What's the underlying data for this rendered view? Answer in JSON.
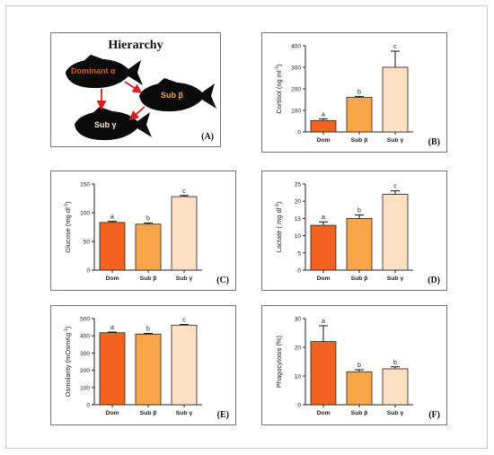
{
  "panel_a": {
    "title": "Hierarchy",
    "label": "(A)",
    "fish": [
      {
        "text": "Dominant α",
        "color": "#e8531a"
      },
      {
        "text": "Sub β",
        "color": "#f6a046"
      },
      {
        "text": "Sub γ",
        "color": "#fbe7c8"
      }
    ],
    "arrow_color": "#d42020"
  },
  "chart_data": [
    {
      "id": "B",
      "label": "(B)",
      "type": "bar",
      "categories": [
        "Dom",
        "Sub β",
        "Sub γ"
      ],
      "values": [
        53,
        160,
        300
      ],
      "errors": [
        8,
        5,
        75
      ],
      "letters": [
        "a",
        "b",
        "c"
      ],
      "ylabel": "Cortisol (ng ml",
      "ylabel_sup": "-1",
      "ylim": [
        0,
        400
      ],
      "yticks": [
        0,
        100,
        200,
        300,
        400
      ],
      "colors": [
        "#f26322",
        "#f9a54a",
        "#fde0c2"
      ]
    },
    {
      "id": "C",
      "label": "(C)",
      "type": "bar",
      "categories": [
        "Dom",
        "Sub β",
        "Sub γ"
      ],
      "values": [
        83,
        80,
        128
      ],
      "errors": [
        2,
        2,
        2
      ],
      "letters": [
        "a",
        "b",
        "c"
      ],
      "ylabel": "Glucose (mg dl",
      "ylabel_sup": "-1",
      "ylim": [
        0,
        150
      ],
      "yticks": [
        0,
        50,
        100,
        150
      ],
      "colors": [
        "#f26322",
        "#f9a54a",
        "#fde0c2"
      ]
    },
    {
      "id": "D",
      "label": "(D)",
      "type": "bar",
      "categories": [
        "Dom",
        "Sub β",
        "Sub γ"
      ],
      "values": [
        13,
        15,
        22
      ],
      "errors": [
        1,
        1,
        1
      ],
      "letters": [
        "a",
        "b",
        "c"
      ],
      "ylabel": "Lactate ( mg dl",
      "ylabel_sup": "-1",
      "ylim": [
        0,
        25
      ],
      "yticks": [
        0,
        5,
        10,
        15,
        20,
        25
      ],
      "colors": [
        "#f26322",
        "#f9a54a",
        "#fde0c2"
      ]
    },
    {
      "id": "E",
      "label": "(E)",
      "type": "bar",
      "categories": [
        "Dom",
        "Sub β",
        "Sub γ"
      ],
      "values": [
        418,
        410,
        462
      ],
      "errors": [
        4,
        4,
        4
      ],
      "letters": [
        "a",
        "b",
        "c"
      ],
      "ylabel": "Osmolarity (mOsmKg",
      "ylabel_sup": "-1",
      "ylim": [
        0,
        500
      ],
      "yticks": [
        0,
        100,
        200,
        300,
        400,
        500
      ],
      "colors": [
        "#f26322",
        "#f9a54a",
        "#fde0c2"
      ]
    },
    {
      "id": "F",
      "label": "(F)",
      "type": "bar",
      "categories": [
        "Dom",
        "Sub β",
        "Sub γ"
      ],
      "values": [
        22,
        11.5,
        12.5
      ],
      "errors": [
        5.5,
        0.7,
        0.7
      ],
      "letters": [
        "a",
        "b",
        "b"
      ],
      "ylabel": "Phagocytosis (%)",
      "ylabel_sup": "",
      "ylim": [
        0,
        30
      ],
      "yticks": [
        0,
        10,
        20,
        30
      ],
      "colors": [
        "#f26322",
        "#f9a54a",
        "#fde0c2"
      ]
    }
  ]
}
